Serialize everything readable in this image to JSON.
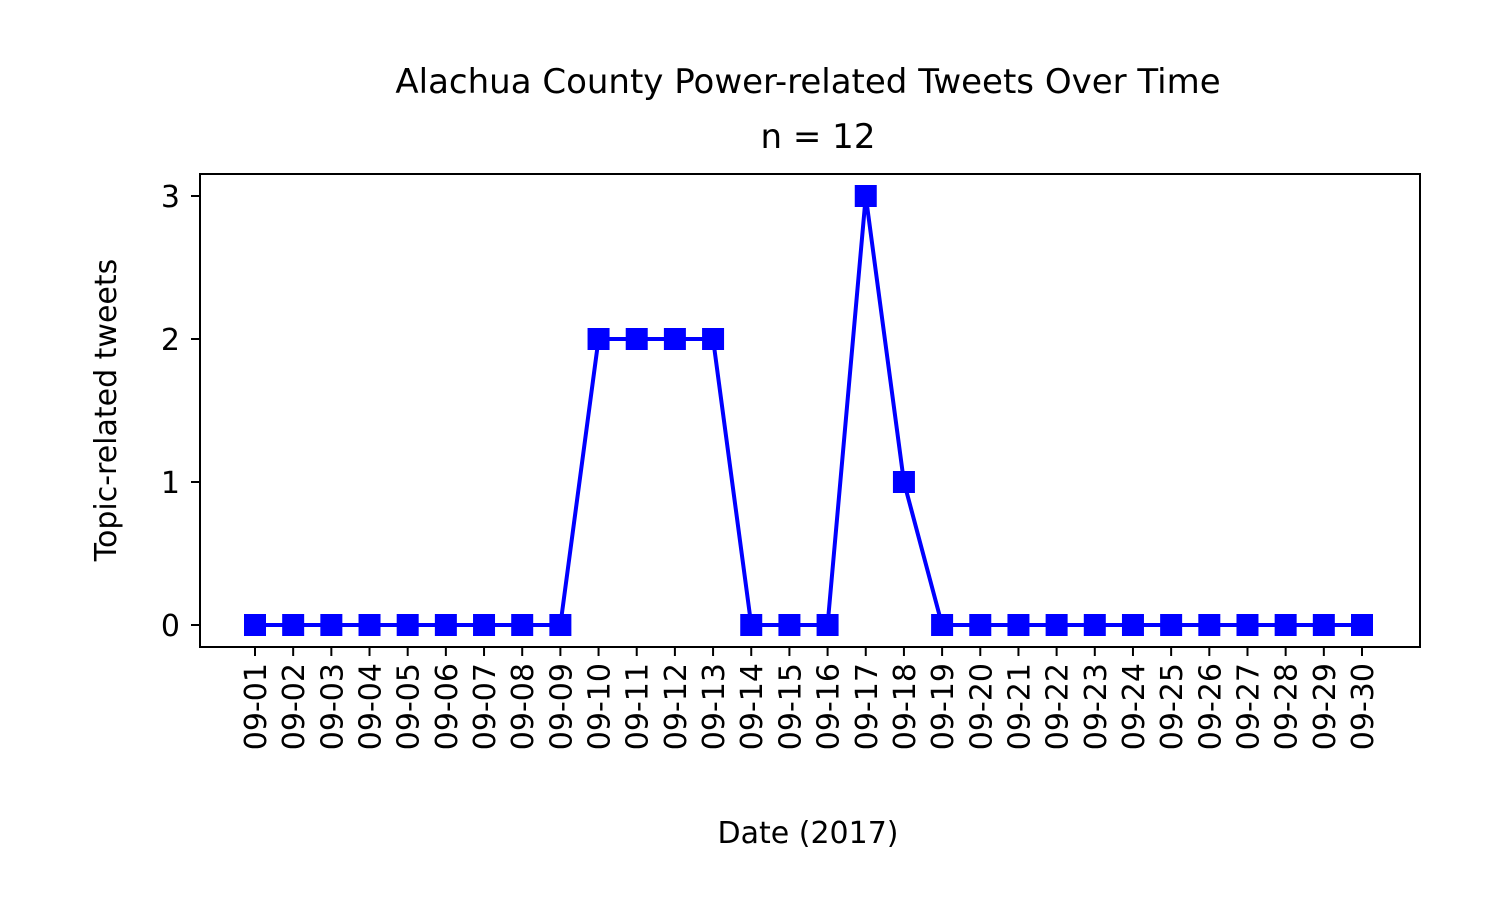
{
  "chart_data": {
    "type": "line",
    "title": "Alachua County Power-related Tweets Over Time",
    "subtitle": "n = 12",
    "xlabel": "Date (2017)",
    "ylabel": "Topic-related tweets",
    "categories": [
      "09-01",
      "09-02",
      "09-03",
      "09-04",
      "09-05",
      "09-06",
      "09-07",
      "09-08",
      "09-09",
      "09-10",
      "09-11",
      "09-12",
      "09-13",
      "09-14",
      "09-15",
      "09-16",
      "09-17",
      "09-18",
      "09-19",
      "09-20",
      "09-21",
      "09-22",
      "09-23",
      "09-24",
      "09-25",
      "09-26",
      "09-27",
      "09-28",
      "09-29",
      "09-30"
    ],
    "series": [
      {
        "values": [
          0,
          0,
          0,
          0,
          0,
          0,
          0,
          0,
          0,
          2,
          2,
          2,
          2,
          0,
          0,
          0,
          3,
          1,
          0,
          0,
          0,
          0,
          0,
          0,
          0,
          0,
          0,
          0,
          0,
          0
        ],
        "color": "#0000ff",
        "marker": "square"
      }
    ],
    "yticks": [
      0,
      1,
      2,
      3
    ],
    "ylim": [
      -0.15,
      3.15
    ],
    "grid": false,
    "legend": "none",
    "x_tick_rotation": "vertical"
  }
}
